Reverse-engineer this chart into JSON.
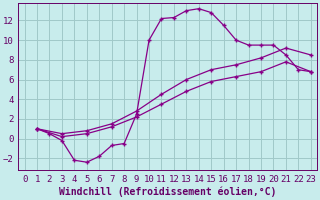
{
  "title": "",
  "xlabel": "Windchill (Refroidissement éolien,°C)",
  "ylabel": "",
  "bg_color": "#c8ecec",
  "grid_color": "#a0c8c8",
  "line_color": "#880088",
  "xlim": [
    -0.5,
    23.5
  ],
  "ylim": [
    -3.2,
    13.8
  ],
  "xticks": [
    0,
    1,
    2,
    3,
    4,
    5,
    6,
    7,
    8,
    9,
    10,
    11,
    12,
    13,
    14,
    15,
    16,
    17,
    18,
    19,
    20,
    21,
    22,
    23
  ],
  "yticks": [
    -2,
    0,
    2,
    4,
    6,
    8,
    10,
    12
  ],
  "curve1_x": [
    1,
    2,
    3,
    4,
    5,
    6,
    7,
    8,
    9,
    10,
    11,
    12,
    13,
    14,
    15,
    16,
    17,
    18,
    19,
    20,
    21,
    22,
    23
  ],
  "curve1_y": [
    1.0,
    0.5,
    -0.2,
    -2.2,
    -2.4,
    -1.8,
    -0.7,
    -0.5,
    2.5,
    10.0,
    12.2,
    12.3,
    13.0,
    13.2,
    12.8,
    11.5,
    10.0,
    9.5,
    9.5,
    9.5,
    8.5,
    7.0,
    6.8
  ],
  "curve2_x": [
    1,
    3,
    5,
    7,
    9,
    11,
    13,
    15,
    17,
    19,
    21,
    23
  ],
  "curve2_y": [
    1.0,
    0.5,
    0.8,
    1.5,
    2.8,
    4.5,
    6.0,
    7.0,
    7.5,
    8.2,
    9.2,
    8.5
  ],
  "curve3_x": [
    1,
    3,
    5,
    7,
    9,
    11,
    13,
    15,
    17,
    19,
    21,
    23
  ],
  "curve3_y": [
    1.0,
    0.2,
    0.5,
    1.2,
    2.2,
    3.5,
    4.8,
    5.8,
    6.3,
    6.8,
    7.8,
    6.8
  ],
  "xlabel_fontsize": 7.0,
  "tick_fontsize": 6.5,
  "font_color": "#660066"
}
